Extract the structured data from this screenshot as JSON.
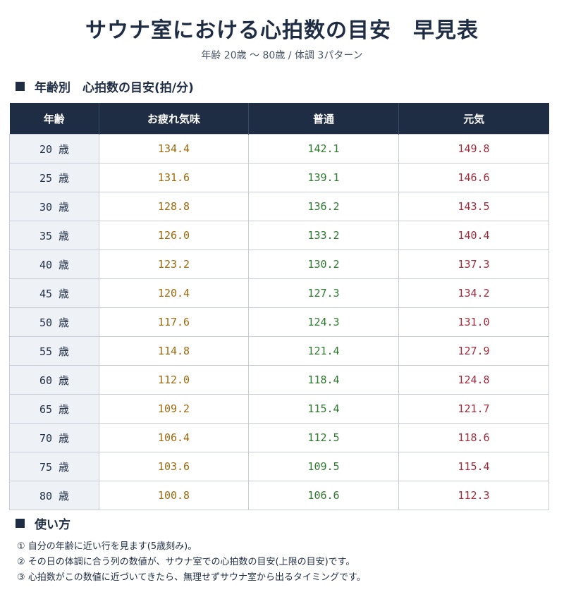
{
  "title": "サウナ室における心拍数の目安　早見表",
  "subtitle": "年齢 20歳 〜 80歳 / 体調 3パターン",
  "table_section": {
    "heading": "年齢別　心拍数の目安(拍/分)",
    "columns": [
      "年齢",
      "お疲れ気味",
      "普通",
      "元気"
    ],
    "rows": [
      {
        "age": "20 歳",
        "tired": "134.4",
        "normal": "142.1",
        "energetic": "149.8"
      },
      {
        "age": "25 歳",
        "tired": "131.6",
        "normal": "139.1",
        "energetic": "146.6"
      },
      {
        "age": "30 歳",
        "tired": "128.8",
        "normal": "136.2",
        "energetic": "143.5"
      },
      {
        "age": "35 歳",
        "tired": "126.0",
        "normal": "133.2",
        "energetic": "140.4"
      },
      {
        "age": "40 歳",
        "tired": "123.2",
        "normal": "130.2",
        "energetic": "137.3"
      },
      {
        "age": "45 歳",
        "tired": "120.4",
        "normal": "127.3",
        "energetic": "134.2"
      },
      {
        "age": "50 歳",
        "tired": "117.6",
        "normal": "124.3",
        "energetic": "131.0"
      },
      {
        "age": "55 歳",
        "tired": "114.8",
        "normal": "121.4",
        "energetic": "127.9"
      },
      {
        "age": "60 歳",
        "tired": "112.0",
        "normal": "118.4",
        "energetic": "124.8"
      },
      {
        "age": "65 歳",
        "tired": "109.2",
        "normal": "115.4",
        "energetic": "121.7"
      },
      {
        "age": "70 歳",
        "tired": "106.4",
        "normal": "112.5",
        "energetic": "118.6"
      },
      {
        "age": "75 歳",
        "tired": "103.6",
        "normal": "109.5",
        "energetic": "115.4"
      },
      {
        "age": "80 歳",
        "tired": "100.8",
        "normal": "106.6",
        "energetic": "112.3"
      }
    ]
  },
  "howto_section": {
    "heading": "使い方",
    "items": [
      "① 自分の年齢に近い行を見ます(5歳刻み)。",
      "② その日の体調に合う列の数値が、サウナ室での心拍数の目安(上限の目安)です。",
      "③ 心拍数がこの数値に近づいてきたら、無理せずサウナ室から出るタイミングです。"
    ]
  },
  "colors": {
    "header_bg": "#1f2d44",
    "tired": "#a0690c",
    "normal": "#2e7a2e",
    "energetic": "#a02c3c",
    "age_bg": "#eef1f5"
  }
}
